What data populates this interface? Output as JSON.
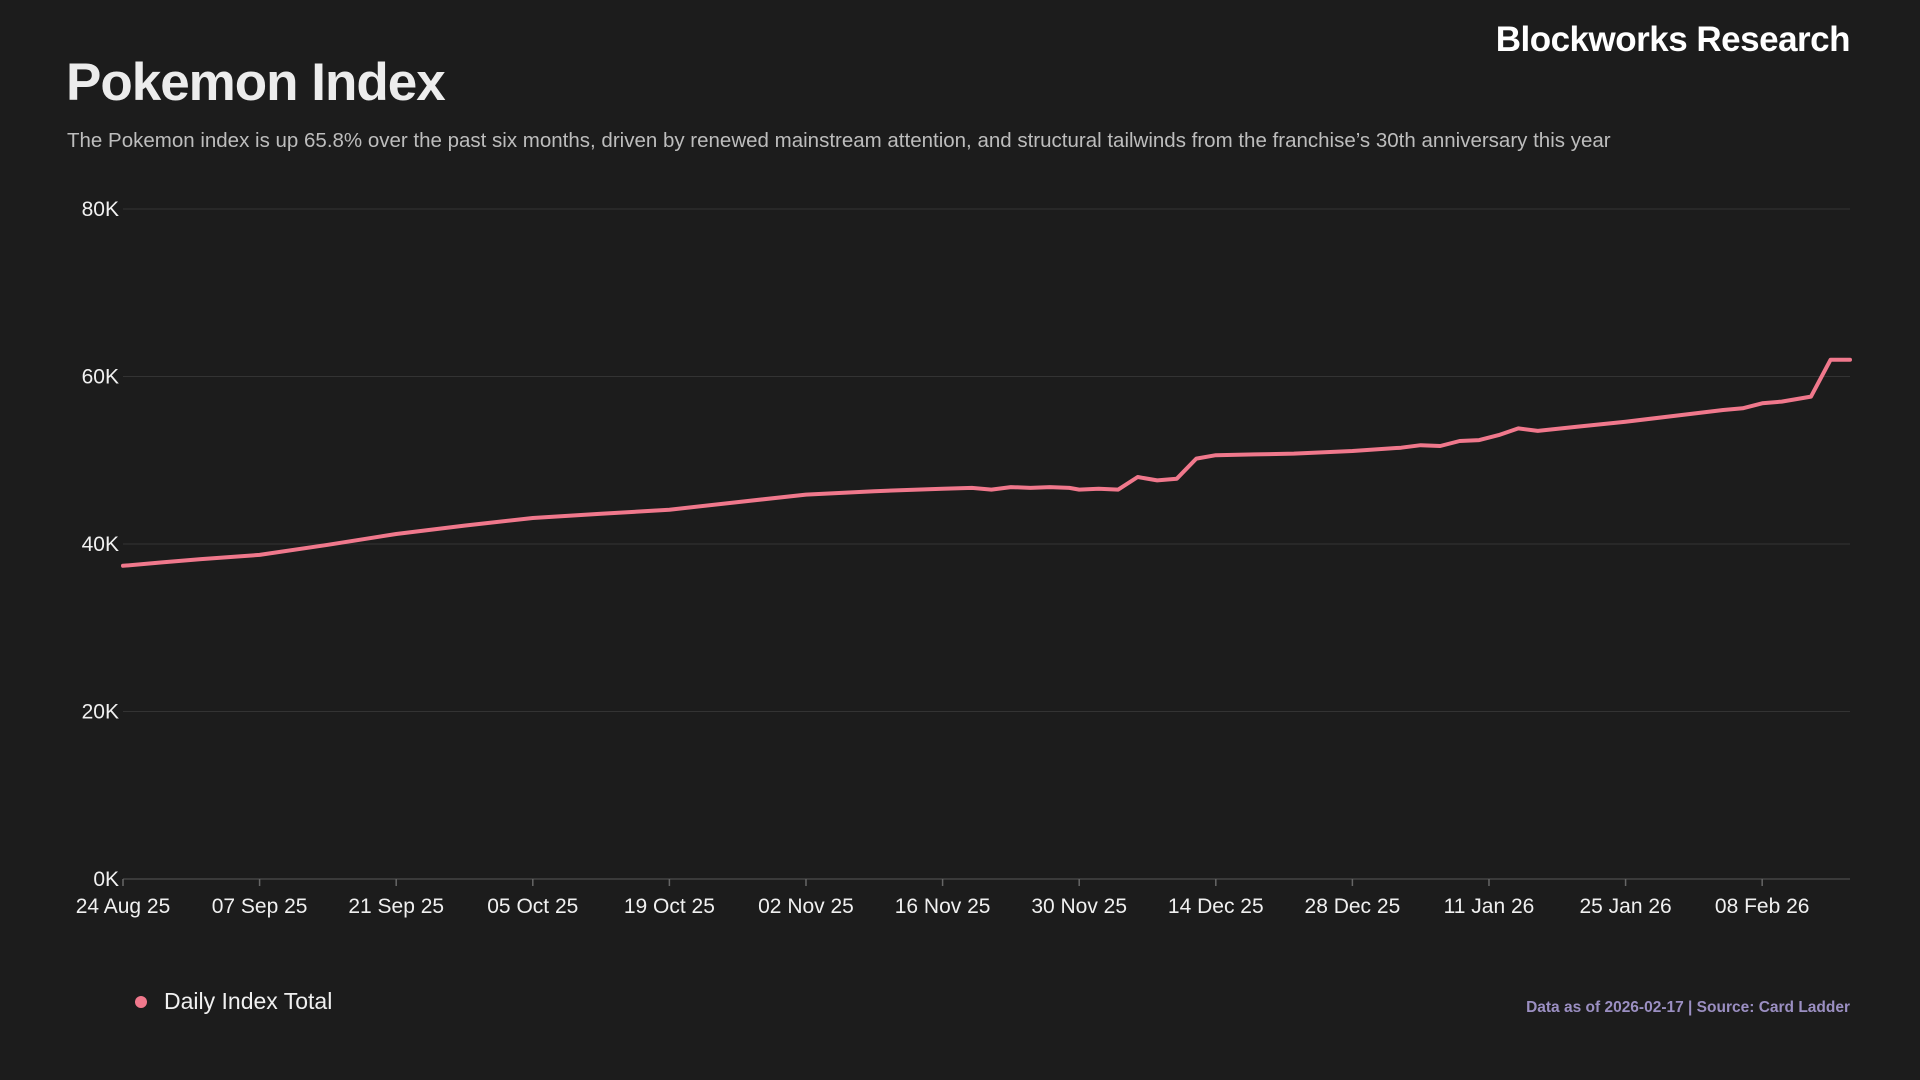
{
  "brand": "Blockworks Research",
  "footnote": "Data as of 2026-02-17 | Source: Card Ladder",
  "colors": {
    "background": "#1c1c1c",
    "series": "#f0788c",
    "grid": "#333333",
    "footnote": "#9b8fc2"
  },
  "chart_data": {
    "type": "line",
    "title": "Pokemon Index",
    "subtitle": "The Pokemon index is up 65.8% over the past six months, driven by renewed mainstream attention, and structural tailwinds from the franchise’s 30th anniversary this year",
    "xlabel": "",
    "ylabel": "",
    "x_range": [
      "2025-08-24",
      "2026-02-17"
    ],
    "ylim": [
      0,
      80000
    ],
    "y_ticks": [
      0,
      20000,
      40000,
      60000,
      80000
    ],
    "y_tick_labels": [
      "0K",
      "20K",
      "40K",
      "60K",
      "80K"
    ],
    "x_ticks": [
      "2025-08-24",
      "2025-09-07",
      "2025-09-21",
      "2025-10-05",
      "2025-10-19",
      "2025-11-02",
      "2025-11-16",
      "2025-11-30",
      "2025-12-14",
      "2025-12-28",
      "2026-01-11",
      "2026-01-25",
      "2026-02-08"
    ],
    "x_tick_labels": [
      "24 Aug 25",
      "07 Sep 25",
      "21 Sep 25",
      "05 Oct 25",
      "19 Oct 25",
      "02 Nov 25",
      "16 Nov 25",
      "30 Nov 25",
      "14 Dec 25",
      "28 Dec 25",
      "11 Jan 26",
      "25 Jan 26",
      "08 Feb 26"
    ],
    "grid": true,
    "legend_position": "bottom-left",
    "series": [
      {
        "name": "Daily Index Total",
        "color": "#f0788c",
        "points": [
          {
            "x": "2025-08-24",
            "y": 37400
          },
          {
            "x": "2025-08-28",
            "y": 37800
          },
          {
            "x": "2025-09-01",
            "y": 38200
          },
          {
            "x": "2025-09-07",
            "y": 38700
          },
          {
            "x": "2025-09-14",
            "y": 39900
          },
          {
            "x": "2025-09-21",
            "y": 41200
          },
          {
            "x": "2025-09-28",
            "y": 42200
          },
          {
            "x": "2025-10-05",
            "y": 43100
          },
          {
            "x": "2025-10-12",
            "y": 43600
          },
          {
            "x": "2025-10-19",
            "y": 44100
          },
          {
            "x": "2025-10-26",
            "y": 45000
          },
          {
            "x": "2025-11-02",
            "y": 45900
          },
          {
            "x": "2025-11-09",
            "y": 46300
          },
          {
            "x": "2025-11-16",
            "y": 46600
          },
          {
            "x": "2025-11-19",
            "y": 46700
          },
          {
            "x": "2025-11-21",
            "y": 46500
          },
          {
            "x": "2025-11-23",
            "y": 46800
          },
          {
            "x": "2025-11-25",
            "y": 46700
          },
          {
            "x": "2025-11-27",
            "y": 46800
          },
          {
            "x": "2025-11-29",
            "y": 46700
          },
          {
            "x": "2025-11-30",
            "y": 46500
          },
          {
            "x": "2025-12-02",
            "y": 46600
          },
          {
            "x": "2025-12-04",
            "y": 46500
          },
          {
            "x": "2025-12-06",
            "y": 48000
          },
          {
            "x": "2025-12-08",
            "y": 47600
          },
          {
            "x": "2025-12-10",
            "y": 47800
          },
          {
            "x": "2025-12-12",
            "y": 50200
          },
          {
            "x": "2025-12-14",
            "y": 50600
          },
          {
            "x": "2025-12-18",
            "y": 50700
          },
          {
            "x": "2025-12-22",
            "y": 50800
          },
          {
            "x": "2025-12-28",
            "y": 51100
          },
          {
            "x": "2026-01-02",
            "y": 51500
          },
          {
            "x": "2026-01-04",
            "y": 51800
          },
          {
            "x": "2026-01-06",
            "y": 51700
          },
          {
            "x": "2026-01-08",
            "y": 52300
          },
          {
            "x": "2026-01-10",
            "y": 52400
          },
          {
            "x": "2026-01-12",
            "y": 53000
          },
          {
            "x": "2026-01-14",
            "y": 53800
          },
          {
            "x": "2026-01-16",
            "y": 53500
          },
          {
            "x": "2026-01-20",
            "y": 54000
          },
          {
            "x": "2026-01-25",
            "y": 54600
          },
          {
            "x": "2026-01-30",
            "y": 55300
          },
          {
            "x": "2026-02-04",
            "y": 56000
          },
          {
            "x": "2026-02-06",
            "y": 56200
          },
          {
            "x": "2026-02-08",
            "y": 56800
          },
          {
            "x": "2026-02-10",
            "y": 57000
          },
          {
            "x": "2026-02-13",
            "y": 57600
          },
          {
            "x": "2026-02-15",
            "y": 62000
          },
          {
            "x": "2026-02-17",
            "y": 62000
          }
        ]
      }
    ]
  }
}
